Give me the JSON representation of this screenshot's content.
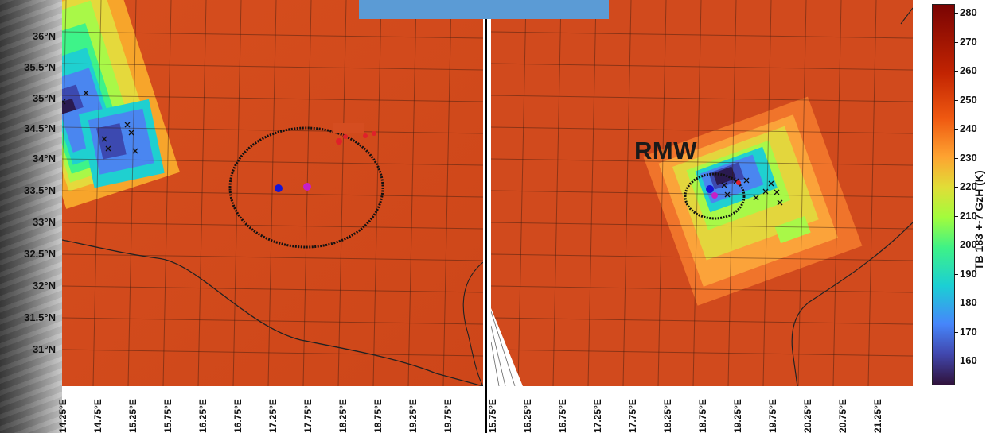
{
  "figure": {
    "title_fragment_left": "",
    "title_fragment_right": "",
    "rmw_annotation": "RMW",
    "colorbar_title": "TB 183 +-7 GzH (K)",
    "colorbar_ticks": [
      "280",
      "270",
      "260",
      "250",
      "240",
      "230",
      "220",
      "210",
      "200",
      "190",
      "180",
      "170",
      "160"
    ],
    "colorbar_range_k": [
      154,
      284
    ],
    "colormap": "turbo",
    "banner_color": "#5b9bd5"
  },
  "left_panel": {
    "lat_ticks": [
      "36°N",
      "35.5°N",
      "35°N",
      "34.5°N",
      "34°N",
      "33.5°N",
      "33°N",
      "32.5°N",
      "32°N",
      "31.5°N",
      "31°N"
    ],
    "lon_ticks": [
      "14.25°E",
      "14.75°E",
      "15.25°E",
      "15.75°E",
      "16.25°E",
      "16.75°E",
      "17.25°E",
      "17.75°E",
      "18.25°E",
      "18.75°E",
      "19.25°E",
      "19.75°E"
    ],
    "rmw_circle": "large circle around center",
    "center_marker_colors": {
      "blue": "#1515d6",
      "magenta": "#c51fc8",
      "red": "#e0202a"
    }
  },
  "right_panel": {
    "lon_ticks": [
      "15.75°E",
      "16.25°E",
      "16.75°E",
      "17.25°E",
      "17.75°E",
      "18.25°E",
      "18.75°E",
      "19.25°E",
      "19.75°E",
      "20.25°E",
      "20.75°E",
      "21.25°E"
    ]
  }
}
